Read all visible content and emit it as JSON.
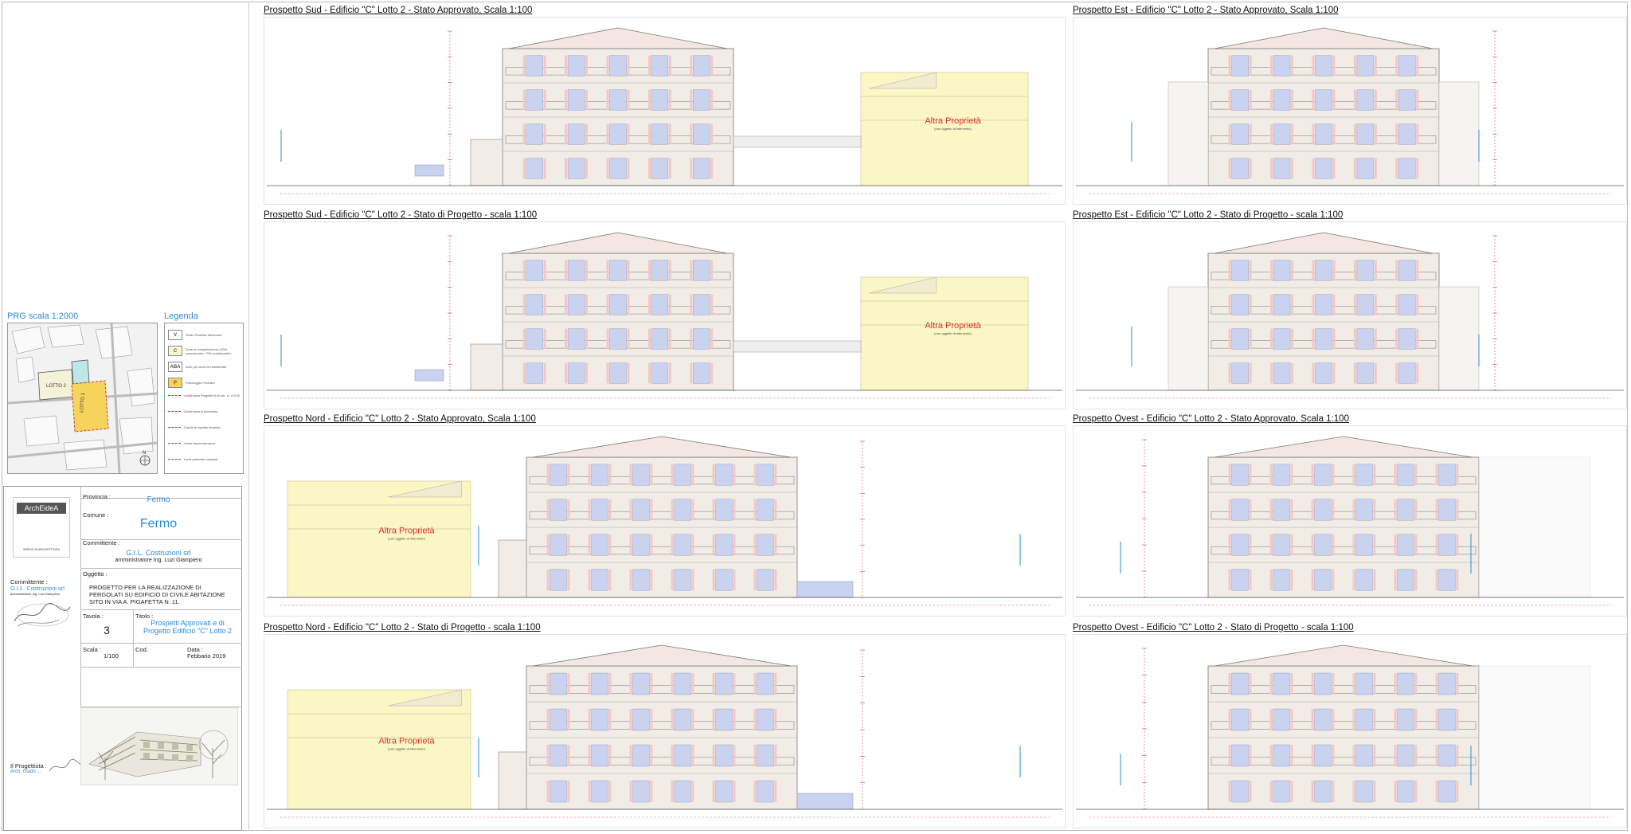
{
  "panels": [
    {
      "title": "Prospetto Sud - Edificio \"C\" Lotto 2 - Stato Approvato, Scala 1:100",
      "altra": "Altra Proprietà",
      "altra_sub": "(non oggetto di intervento)"
    },
    {
      "title": "Prospetto Est - Edificio \"C\" Lotto 2 - Stato Approvato, Scala 1:100",
      "altra": "",
      "altra_sub": ""
    },
    {
      "title": "Prospetto Sud - Edificio \"C\" Lotto 2 - Stato di Progetto - scala 1:100",
      "altra": "Altra Proprietà",
      "altra_sub": "(non oggetto di intervento)"
    },
    {
      "title": "Prospetto Est - Edificio \"C\" Lotto 2 - Stato di Progetto - scala 1:100",
      "altra": "",
      "altra_sub": ""
    },
    {
      "title": "Prospetto Nord - Edificio \"C\" Lotto 2 - Stato Approvato, Scala 1:100",
      "altra": "Altra Proprietà",
      "altra_sub": "(non oggetto di intervento)"
    },
    {
      "title": "Prospetto Ovest - Edificio \"C\" Lotto 2 - Stato Approvato, Scala 1:100",
      "altra": "",
      "altra_sub": ""
    },
    {
      "title": "Prospetto Nord - Edificio \"C\" Lotto 2 - Stato di Progetto - scala 1:100",
      "altra": "Altra Proprietà",
      "altra_sub": "(non oggetto di intervento)"
    },
    {
      "title": "Prospetto Ovest - Edificio \"C\" Lotto 2 - Stato di Progetto - scala 1:100",
      "altra": "",
      "altra_sub": ""
    }
  ],
  "prg": {
    "title": "PRG  scala  1:2000",
    "lotto2": "LOTTO 2",
    "lotto1": "LOTTO 1"
  },
  "legend": {
    "title": "Legenda",
    "items": [
      {
        "sym": "V",
        "text": "Verde Pubblico attrezzato",
        "color": "#ffffff"
      },
      {
        "sym": "C",
        "text": "Zone di completamento (30% commerciale, 70% residenziale)",
        "color": "#fff6d0"
      },
      {
        "sym": "ABA",
        "text": "Aree per lavori ed ambientali",
        "color": "#ffffff"
      },
      {
        "sym": "P",
        "text": "Parcheggio Pubblico",
        "color": "#f6d35a"
      },
      {
        "sym": "",
        "text": "Limite area Progetto N.59 art. 11.4 NTA",
        "color": "#ffffff"
      },
      {
        "sym": "",
        "text": "Limite area di intervento",
        "color": "#ffffff"
      },
      {
        "sym": "",
        "text": "Fascia di rispetto stradale",
        "color": "#ffffff"
      },
      {
        "sym": "",
        "text": "Limite fascia litoranea",
        "color": "#ffffff"
      },
      {
        "sym": "",
        "text": "Limiti particelle catastali",
        "color": "#ffffff"
      }
    ]
  },
  "titleblock": {
    "logo": "ArchEideA",
    "logo_sub": "SERVIZI DI ARCHITETTURA",
    "provincia_label": "Provincia :",
    "provincia": "Fermo",
    "comune_label": "Comune :",
    "comune": "Fermo",
    "committente_label": "Committente :",
    "committente": "G.I.L. Costruzioni srl",
    "committente_sub": "amministratore Ing. Luzi Giampiero",
    "oggetto_label": "Oggetto :",
    "oggetto": "PROGETTO PER LA REALIZZAZIONE DI PERGOLATI SU EDIFICIO DI CIVILE ABITAZIONE SITO IN VIA A. PIGAFETTA N. 11.",
    "tavola_label": "Tavola :",
    "tavola": "3",
    "titolo_label": "Titolo :",
    "titolo": "Prospetti Approvati e di Progetto Edificio \"C\" Lotto 2",
    "scala_label": "Scala :",
    "scala": "1/100",
    "cod_label": "Cod.",
    "data_label": "Data :",
    "data": "Febbario 2019",
    "side_committente_label": "Committente :",
    "side_committente": "G.I.L. Costruzioni srl",
    "side_committente_sub": "amministratore Ing. Luzi Giampiero",
    "progettista_label": "Il Progettista :",
    "progettista": "Arch. Guido ..."
  },
  "colors": {
    "accent": "#2b8ad6",
    "altra": "#e03030",
    "yellow": "#fbf7c4",
    "facade": "#f1ede6",
    "window": "#c9d3ef",
    "dim": "#d35050"
  }
}
